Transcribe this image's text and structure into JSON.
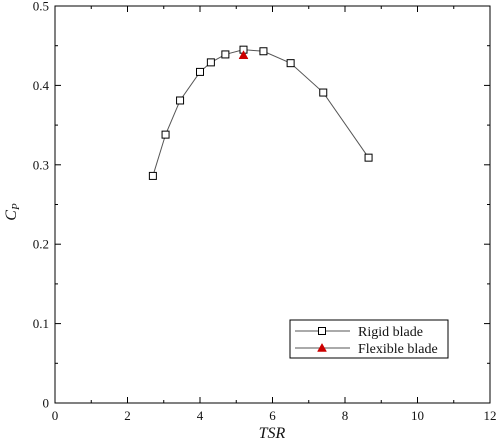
{
  "chart_data": {
    "type": "line",
    "xlabel": "TSR",
    "ylabel_main": "C",
    "ylabel_sub": "P",
    "xlim": [
      0,
      12
    ],
    "ylim": [
      0,
      0.5
    ],
    "x_ticks": [
      "0",
      "2",
      "4",
      "6",
      "8",
      "10",
      "12"
    ],
    "y_ticks": [
      "0",
      "0.1",
      "0.2",
      "0.3",
      "0.4",
      "0.5"
    ],
    "grid": false,
    "legend_position": "bottom-right",
    "series": [
      {
        "name": "Rigid blade",
        "marker": "square-open",
        "color": "#000000",
        "line_color": "#555555",
        "x": [
          2.7,
          3.05,
          3.45,
          4.0,
          4.3,
          4.7,
          5.2,
          5.75,
          6.5,
          7.4,
          8.65
        ],
        "y": [
          0.286,
          0.338,
          0.381,
          0.417,
          0.429,
          0.439,
          0.445,
          0.443,
          0.428,
          0.391,
          0.309
        ]
      },
      {
        "name": "Flexible blade",
        "marker": "triangle-filled",
        "color": "#cc0000",
        "x": [
          5.2
        ],
        "y": [
          0.438
        ]
      }
    ]
  }
}
